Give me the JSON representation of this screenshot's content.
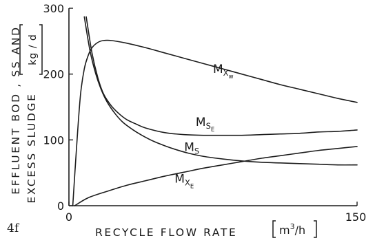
{
  "chart_data": {
    "type": "line",
    "panel_label": "4f",
    "xlabel": {
      "words": "RECYCLE  FLOW  RATE",
      "unit_base": "m",
      "unit_sup": "3",
      "unit_tail": "/h"
    },
    "ylabel": {
      "line1": "EFFLUENT  BOD ,  SS  AND",
      "line2": "EXCESS  SLUDGE",
      "unit": "kg / d"
    },
    "xlim": [
      0,
      150
    ],
    "ylim": [
      0,
      300
    ],
    "xticks": [
      {
        "value": 0,
        "label": "0"
      },
      {
        "value": 150,
        "label": "150"
      }
    ],
    "yticks": [
      {
        "value": 0,
        "label": "0"
      },
      {
        "value": 100,
        "label": "100"
      },
      {
        "value": 200,
        "label": "200"
      },
      {
        "value": 300,
        "label": "300"
      }
    ],
    "series": [
      {
        "name": "M_Xw",
        "label": {
          "main": "M",
          "sub": "X",
          "subsub": "w"
        },
        "label_at": [
          75,
          202
        ],
        "points": [
          [
            2,
            0
          ],
          [
            4,
            90
          ],
          [
            6,
            168
          ],
          [
            8,
            208
          ],
          [
            10,
            228
          ],
          [
            12,
            240
          ],
          [
            15,
            248
          ],
          [
            18,
            251
          ],
          [
            22,
            251
          ],
          [
            30,
            247
          ],
          [
            40,
            240
          ],
          [
            50,
            232
          ],
          [
            60,
            224
          ],
          [
            70,
            216
          ],
          [
            80,
            208
          ],
          [
            90,
            200
          ],
          [
            100,
            192
          ],
          [
            110,
            184
          ],
          [
            120,
            177
          ],
          [
            130,
            170
          ],
          [
            140,
            163
          ],
          [
            150,
            157
          ]
        ]
      },
      {
        "name": "M_SE",
        "label": {
          "main": "M",
          "sub": "S",
          "subsub": "E"
        },
        "label_at": [
          66,
          121
        ],
        "points": [
          [
            9,
            287
          ],
          [
            12,
            232
          ],
          [
            15,
            195
          ],
          [
            18,
            170
          ],
          [
            22,
            152
          ],
          [
            26,
            140
          ],
          [
            30,
            131
          ],
          [
            35,
            124
          ],
          [
            40,
            118
          ],
          [
            50,
            111
          ],
          [
            60,
            108
          ],
          [
            70,
            107
          ],
          [
            80,
            107
          ],
          [
            90,
            107
          ],
          [
            100,
            108
          ],
          [
            110,
            109
          ],
          [
            120,
            110
          ],
          [
            130,
            112
          ],
          [
            140,
            113
          ],
          [
            150,
            115
          ]
        ]
      },
      {
        "name": "M_S",
        "label": {
          "main": "M",
          "sub": "S",
          "subsub": ""
        },
        "label_at": [
          60,
          83
        ],
        "points": [
          [
            8,
            287
          ],
          [
            11,
            235
          ],
          [
            14,
            200
          ],
          [
            17,
            175
          ],
          [
            20,
            157
          ],
          [
            24,
            140
          ],
          [
            28,
            127
          ],
          [
            33,
            116
          ],
          [
            38,
            107
          ],
          [
            44,
            98
          ],
          [
            50,
            91
          ],
          [
            56,
            85
          ],
          [
            62,
            80
          ],
          [
            70,
            75
          ],
          [
            80,
            71
          ],
          [
            90,
            68
          ],
          [
            100,
            66
          ],
          [
            110,
            65
          ],
          [
            120,
            64
          ],
          [
            130,
            63
          ],
          [
            140,
            62
          ],
          [
            150,
            62
          ]
        ]
      },
      {
        "name": "M_XE",
        "label": {
          "main": "M",
          "sub": "X",
          "subsub": "E"
        },
        "label_at": [
          55,
          35
        ],
        "points": [
          [
            3,
            0
          ],
          [
            10,
            12
          ],
          [
            20,
            22
          ],
          [
            30,
            31
          ],
          [
            40,
            38
          ],
          [
            50,
            45
          ],
          [
            60,
            51
          ],
          [
            70,
            57
          ],
          [
            80,
            62
          ],
          [
            90,
            67
          ],
          [
            100,
            72
          ],
          [
            110,
            76
          ],
          [
            120,
            80
          ],
          [
            130,
            84
          ],
          [
            140,
            87
          ],
          [
            150,
            90
          ]
        ]
      }
    ]
  }
}
